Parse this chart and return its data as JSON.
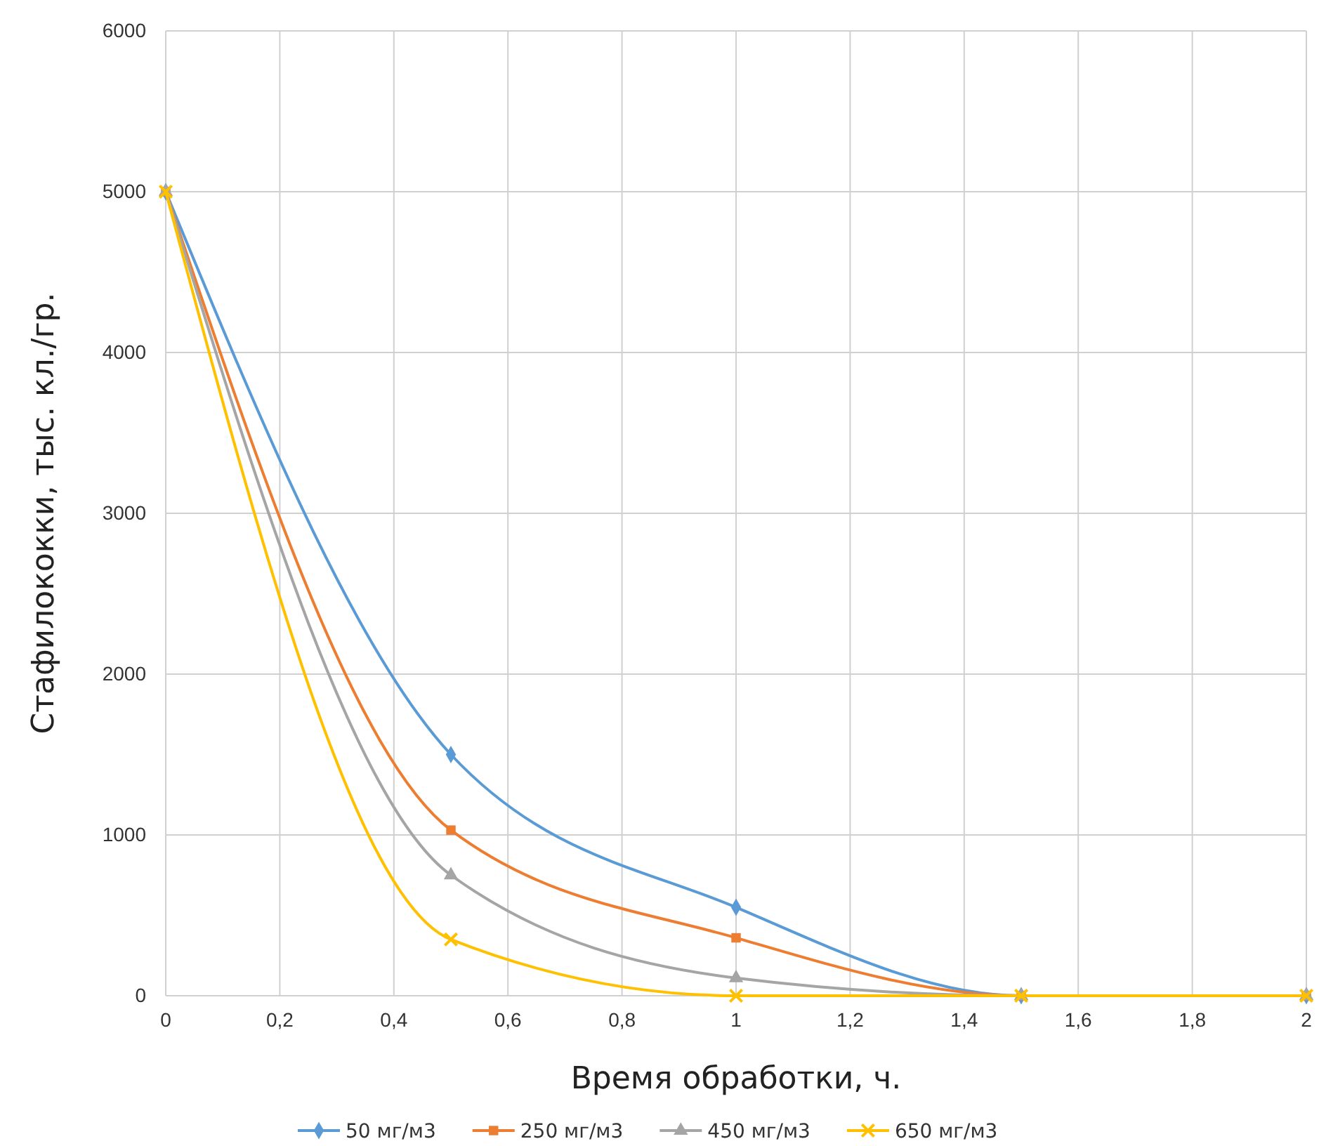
{
  "chart_data": {
    "type": "line",
    "xlabel": "Время обработки, ч.",
    "ylabel": "Стафилококки, тыс. кл./гр.",
    "x": [
      0,
      0.5,
      1,
      1.5,
      2
    ],
    "series": [
      {
        "name": "50 мг/м3",
        "color": "#5b9bd5",
        "marker": "diamond",
        "values": [
          5000,
          1500,
          550,
          0,
          0
        ]
      },
      {
        "name": "250 мг/м3",
        "color": "#ed7d31",
        "marker": "square",
        "values": [
          5000,
          1030,
          360,
          0,
          0
        ]
      },
      {
        "name": "450 мг/м3",
        "color": "#a5a5a5",
        "marker": "triangle",
        "values": [
          5000,
          750,
          110,
          0,
          0
        ]
      },
      {
        "name": "650 мг/м3",
        "color": "#ffc000",
        "marker": "cross",
        "values": [
          5000,
          350,
          0,
          0,
          0
        ]
      }
    ],
    "xlim": [
      0,
      2
    ],
    "xticks": [
      0,
      {
        "value": 0.2,
        "label": "0,2"
      },
      {
        "value": 0.4,
        "label": "0,4"
      },
      {
        "value": 0.6,
        "label": "0,6"
      },
      {
        "value": 0.8,
        "label": "0,8"
      },
      1,
      {
        "value": 1.2,
        "label": "1,2"
      },
      {
        "value": 1.4,
        "label": "1,4"
      },
      {
        "value": 1.6,
        "label": "1,6"
      },
      {
        "value": 1.8,
        "label": "1,8"
      },
      2
    ],
    "ylim": [
      0,
      6000
    ],
    "yticks": [
      0,
      1000,
      2000,
      3000,
      4000,
      5000,
      6000
    ],
    "grid": true,
    "legend": "bottom",
    "line_style": "solid"
  }
}
